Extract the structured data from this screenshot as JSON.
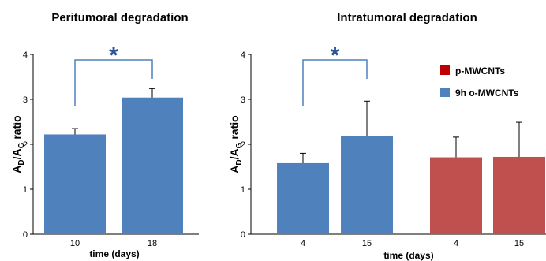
{
  "chart_data": [
    {
      "type": "bar",
      "title": "Peritumoral degradation",
      "xlabel": "time (days)",
      "ylabel_main": "A",
      "ylabel_sub1": "D",
      "ylabel_mid": "/A",
      "ylabel_sub2": "G",
      "ylabel_tail": " ratio",
      "ylim": [
        0,
        4
      ],
      "yticks": [
        "0",
        "1",
        "2",
        "3",
        "4"
      ],
      "categories": [
        "10",
        "18"
      ],
      "series": [
        {
          "color": "#4f81bd",
          "values": [
            2.22,
            3.04
          ],
          "errors": [
            0.13,
            0.2
          ]
        }
      ],
      "significance": {
        "label": "*",
        "from": 0,
        "to": 1
      }
    },
    {
      "type": "bar",
      "title": "Intratumoral degradation",
      "xlabel": "time (days)",
      "ylabel_main": "A",
      "ylabel_sub1": "D",
      "ylabel_mid": "/A",
      "ylabel_sub2": "G",
      "ylabel_tail": " ratio",
      "ylim": [
        0,
        4
      ],
      "yticks": [
        "0",
        "1",
        "2",
        "3",
        "4"
      ],
      "categories": [
        "4",
        "15",
        "4",
        "15"
      ],
      "series": [
        {
          "name": "9h o-MWCNTs",
          "color": "#4f81bd",
          "values": [
            1.58,
            2.19,
            null,
            null
          ],
          "errors": [
            0.22,
            0.77,
            null,
            null
          ]
        },
        {
          "name": "p-MWCNTs",
          "color": "#c0504d",
          "values": [
            null,
            null,
            1.71,
            1.72
          ],
          "errors": [
            null,
            null,
            0.45,
            0.77
          ]
        }
      ],
      "legend": [
        {
          "label": "p-MWCNTs",
          "color": "#c00000"
        },
        {
          "label": "9h o-MWCNTs",
          "color": "#4f81bd"
        }
      ],
      "legend_position": "top-right",
      "significance": {
        "label": "*",
        "from": 0,
        "to": 1
      }
    }
  ],
  "colors": {
    "bracket": "#4f81bd",
    "star": "#2e5597",
    "axis": "#000000"
  }
}
